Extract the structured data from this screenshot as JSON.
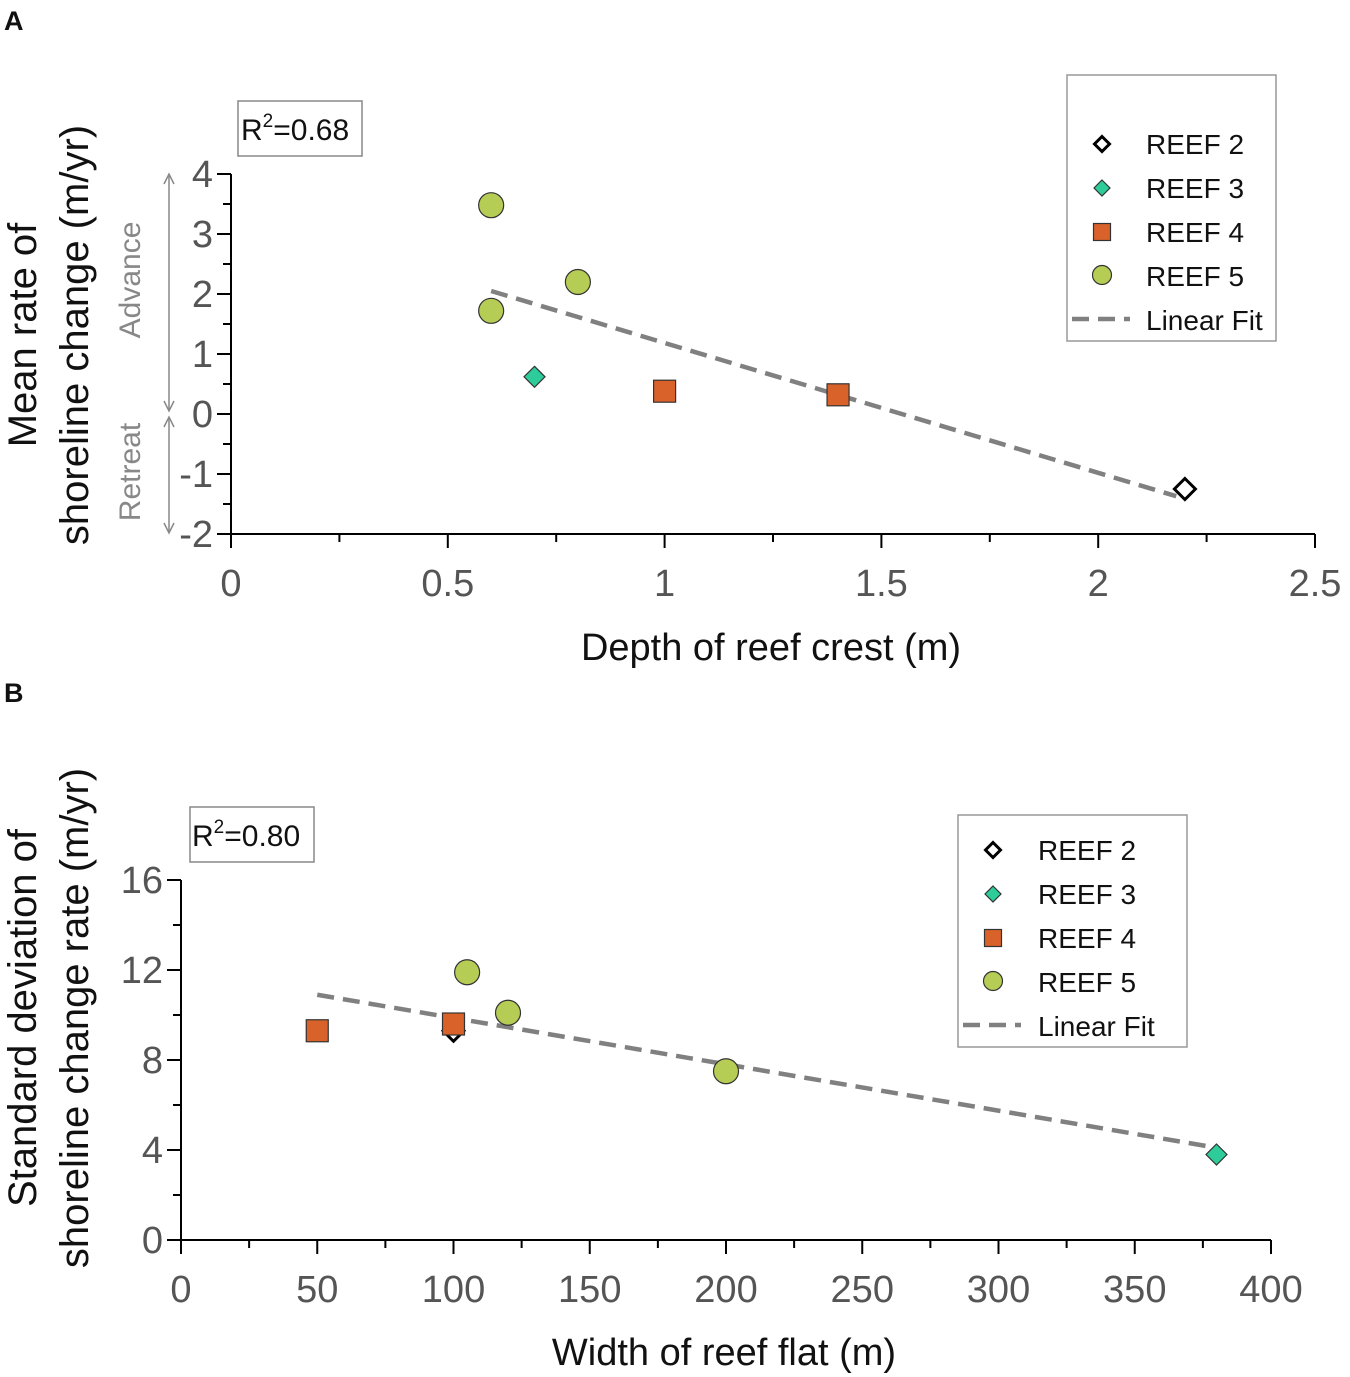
{
  "colors": {
    "reef2": "#ffffff",
    "reef3": "#2ecc9a",
    "reef4": "#d9622b",
    "reef5": "#b5cc55",
    "fit": "#808080",
    "axis": "#000000"
  },
  "chart_data": [
    {
      "type": "scatter",
      "panel": "A",
      "xlabel": "Depth of reef crest (m)",
      "ylabel_lines": [
        "Mean rate of",
        "shoreline change (m/yr)"
      ],
      "xlim": [
        0,
        2.5
      ],
      "ylim": [
        -2,
        4
      ],
      "xticks": [
        "0",
        "0.5",
        "1",
        "1.5",
        "2",
        "2.5"
      ],
      "yticks": [
        "4",
        "3",
        "2",
        "1",
        "0",
        "-1",
        "-2"
      ],
      "r2_label": "R",
      "r2_sup": "2",
      "r2_value": "=0.68",
      "advance_label": "Advance",
      "retreat_label": "Retreat",
      "legend": [
        "REEF 2",
        "REEF 3",
        "REEF 4",
        "REEF 5",
        "Linear Fit"
      ],
      "series": [
        {
          "name": "REEF 2",
          "marker": "diamond-open",
          "points": [
            [
              2.2,
              -1.25
            ]
          ]
        },
        {
          "name": "REEF 3",
          "marker": "diamond",
          "points": [
            [
              0.7,
              0.62
            ]
          ]
        },
        {
          "name": "REEF 4",
          "marker": "square",
          "points": [
            [
              1.0,
              0.38
            ],
            [
              1.4,
              0.32
            ]
          ]
        },
        {
          "name": "REEF 5",
          "marker": "circle",
          "points": [
            [
              0.6,
              3.48
            ],
            [
              0.8,
              2.2
            ],
            [
              0.6,
              1.72
            ]
          ]
        }
      ],
      "fit": {
        "x": [
          0.6,
          2.18
        ],
        "y": [
          2.05,
          -1.37
        ]
      }
    },
    {
      "type": "scatter",
      "panel": "B",
      "xlabel": "Width of reef flat (m)",
      "ylabel_lines": [
        "Standard deviation of",
        "shoreline change rate (m/yr)"
      ],
      "xlim": [
        0,
        400
      ],
      "ylim": [
        0,
        16
      ],
      "xticks": [
        "0",
        "50",
        "100",
        "150",
        "200",
        "250",
        "300",
        "350",
        "400"
      ],
      "yticks": [
        "16",
        "12",
        "8",
        "4",
        "0"
      ],
      "r2_label": "R",
      "r2_sup": "2",
      "r2_value": "=0.80",
      "legend": [
        "REEF 2",
        "REEF 3",
        "REEF 4",
        "REEF 5",
        "Linear Fit"
      ],
      "series": [
        {
          "name": "REEF 2",
          "marker": "diamond-open",
          "points": [
            [
              100,
              9.3
            ]
          ]
        },
        {
          "name": "REEF 3",
          "marker": "diamond",
          "points": [
            [
              380,
              3.8
            ]
          ]
        },
        {
          "name": "REEF 4",
          "marker": "square",
          "points": [
            [
              50,
              9.3
            ],
            [
              100,
              9.6
            ]
          ]
        },
        {
          "name": "REEF 5",
          "marker": "circle",
          "points": [
            [
              105,
              11.9
            ],
            [
              120,
              10.1
            ],
            [
              200,
              7.5
            ]
          ]
        }
      ],
      "fit": {
        "x": [
          50,
          380
        ],
        "y": [
          10.9,
          4.1
        ]
      }
    }
  ]
}
